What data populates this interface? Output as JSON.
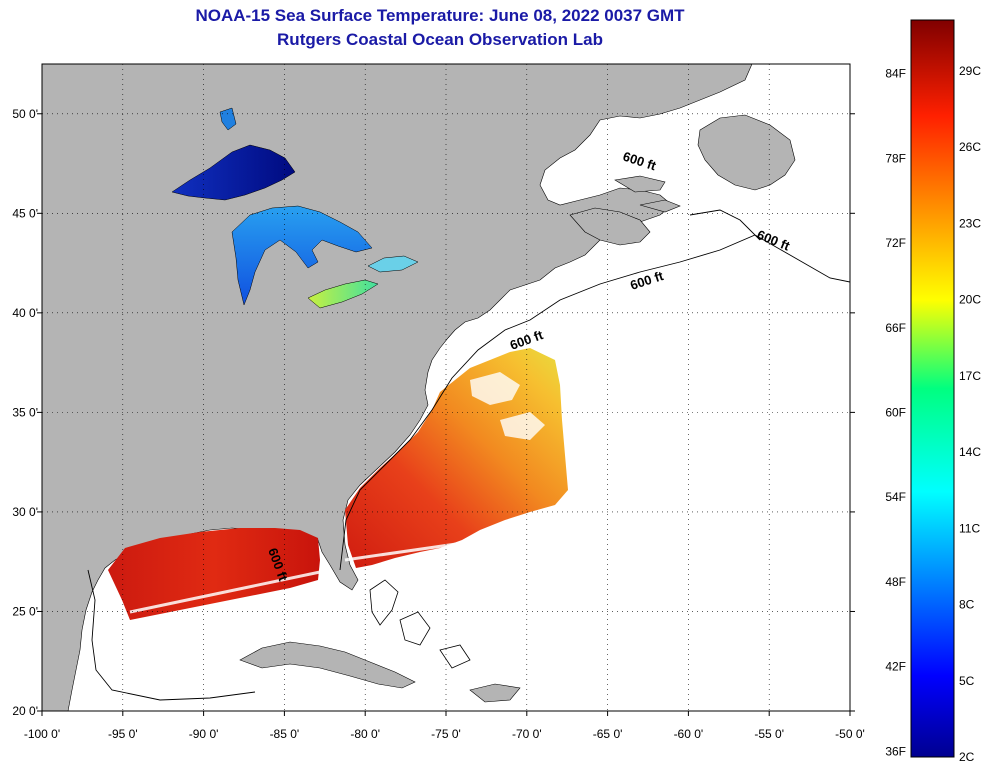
{
  "title": "NOAA-15 Sea Surface Temperature:  June 08, 2022 0037 GMT",
  "subtitle": "Rutgers Coastal Ocean Observation Lab",
  "map": {
    "lon_ticks": [
      "-100 0'",
      "-95 0'",
      "-90 0'",
      "-85 0'",
      "-80 0'",
      "-75 0'",
      "-70 0'",
      "-65 0'",
      "-60 0'",
      "-55 0'",
      "-50 0'"
    ],
    "lat_ticks": [
      "20 0'",
      "25 0'",
      "30 0'",
      "35 0'",
      "40 0'",
      "45 0'",
      "50 0'"
    ],
    "lon_range": [
      -100,
      -50
    ],
    "lat_range": [
      20,
      52.5
    ],
    "depth_labels": [
      "600 ft",
      "600 ft",
      "600 ft",
      "600 ft",
      "600 ft"
    ],
    "colors": {
      "land": "#b4b4b4",
      "ocean": "#ffffff",
      "coastline": "#000000"
    }
  },
  "colorbar": {
    "fahrenheit_labels": [
      "84F",
      "78F",
      "72F",
      "66F",
      "60F",
      "54F",
      "48F",
      "42F",
      "36F"
    ],
    "celsius_labels": [
      "29C",
      "26C",
      "23C",
      "20C",
      "17C",
      "14C",
      "11C",
      "8C",
      "5C",
      "2C"
    ],
    "range_c": [
      2,
      31
    ]
  }
}
